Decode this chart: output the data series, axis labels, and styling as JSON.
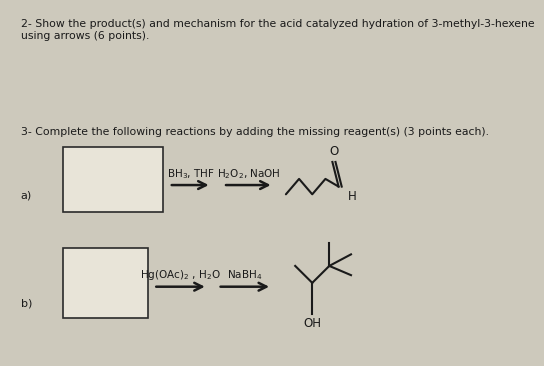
{
  "background_color": "#cdc9bc",
  "title_q2": "2- Show the product(s) and mechanism for the acid catalyzed hydration of 3-methyl-3-hexene\nusing arrows (6 points).",
  "title_q3": "3- Complete the following reactions by adding the missing reagent(s) (3 points each).",
  "label_a": "a)",
  "label_b": "b)",
  "reagent_a1": "BH$_3$, THF",
  "reagent_a2": "H$_2$O$_2$, NaOH",
  "reagent_b1": "Hg(OAc)$_2$ , H$_2$O",
  "reagent_b2": "NaBH$_4$",
  "text_color": "#1a1a1a",
  "box_color": "#e8e4d8",
  "box_edge_color": "#2a2a2a",
  "arrow_color": "#1a1a1a"
}
